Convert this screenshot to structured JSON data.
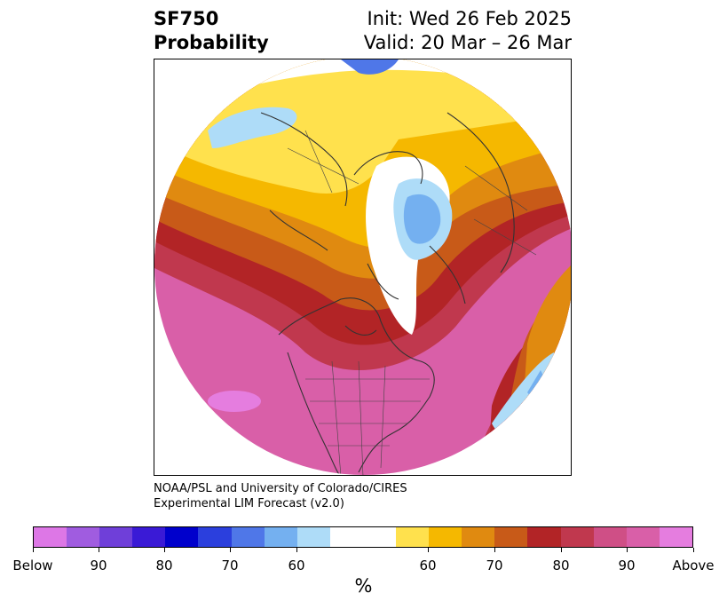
{
  "header": {
    "title_line1": "SF750",
    "title_line2": "Probability",
    "init_text": "Init: Wed 26 Feb 2025",
    "valid_text": "Valid: 20 Mar – 26 Mar"
  },
  "credit": {
    "line1": "NOAA/PSL and University of Colorado/CIRES",
    "line2": "Experimental LIM Forecast (v2.0)"
  },
  "colorbar": {
    "unit_label": "%",
    "ticks": [
      "Below",
      "90",
      "80",
      "70",
      "60",
      "60",
      "70",
      "80",
      "90",
      "Above"
    ],
    "colors": [
      "#dd77e6",
      "#a05ce0",
      "#6f3fd9",
      "#3a1ad6",
      "#0000cc",
      "#2b3fdd",
      "#4f77e8",
      "#74b0f0",
      "#aedcf8",
      "#ffffff",
      "#ffe14d",
      "#f5b800",
      "#e08a10",
      "#c85a18",
      "#b22426",
      "#c0384e",
      "#cf4f86",
      "#d95fa8",
      "#e57ddf"
    ]
  },
  "map": {
    "projection": "north-polar-stereographic",
    "colors": {
      "pink": "#d95fa8",
      "magenta": "#e57ddf",
      "rose": "#cf4f86",
      "crimson": "#c0384e",
      "darkred": "#b22426",
      "rust": "#c85a18",
      "orange": "#e08a10",
      "gold": "#f5b800",
      "yellow": "#ffe14d",
      "lightblue": "#aedcf8",
      "blue": "#74b0f0",
      "midblue": "#4f77e8"
    }
  }
}
